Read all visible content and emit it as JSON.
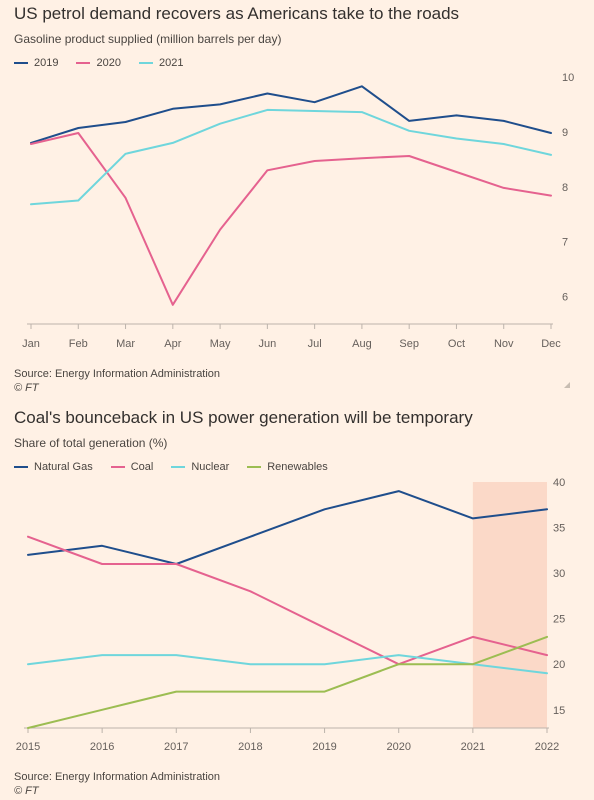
{
  "chart_data": [
    {
      "type": "line",
      "title": "US petrol demand recovers as Americans take to the roads",
      "subtitle": "Gasoline product supplied (million barrels per day)",
      "categories": [
        "Jan",
        "Feb",
        "Mar",
        "Apr",
        "May",
        "Jun",
        "Jul",
        "Aug",
        "Sep",
        "Oct",
        "Nov",
        "Dec"
      ],
      "series": [
        {
          "name": "2019",
          "color": "#1f4e8c",
          "values": [
            8.8,
            9.07,
            9.18,
            9.42,
            9.5,
            9.7,
            9.54,
            9.83,
            9.2,
            9.3,
            9.2,
            8.98
          ]
        },
        {
          "name": "2020",
          "color": "#e5628f",
          "values": [
            8.78,
            8.98,
            7.8,
            5.85,
            7.22,
            8.3,
            8.47,
            8.52,
            8.56,
            8.27,
            7.98,
            7.84
          ]
        },
        {
          "name": "2021",
          "color": "#6fd6dc",
          "values": [
            7.68,
            7.75,
            8.6,
            8.8,
            9.15,
            9.4,
            9.38,
            9.36,
            9.02,
            8.88,
            8.78,
            8.58
          ]
        }
      ],
      "yticks": [
        6,
        7,
        8,
        9,
        10
      ],
      "ylim": [
        5.5,
        10
      ],
      "legend_position": "top-left",
      "grid": false,
      "source": "Source: Energy Information Administration",
      "copyright": "© FT"
    },
    {
      "type": "line",
      "title": "Coal's bounceback in US power generation will be temporary",
      "subtitle": "Share of total generation (%)",
      "categories": [
        "2015",
        "2016",
        "2017",
        "2018",
        "2019",
        "2020",
        "2021",
        "2022"
      ],
      "series": [
        {
          "name": "Natural Gas",
          "color": "#1f4e8c",
          "values": [
            32,
            33,
            31,
            34,
            37,
            39,
            36,
            37
          ]
        },
        {
          "name": "Coal",
          "color": "#e5628f",
          "values": [
            34,
            31,
            31,
            28,
            24,
            20,
            23,
            21
          ]
        },
        {
          "name": "Nuclear",
          "color": "#6fd6dc",
          "values": [
            20,
            21,
            21,
            20,
            20,
            21,
            20,
            19
          ]
        },
        {
          "name": "Renewables",
          "color": "#9cbd52",
          "values": [
            13,
            15,
            17,
            17,
            17,
            20,
            20,
            23
          ]
        }
      ],
      "yticks": [
        15,
        20,
        25,
        30,
        35,
        40
      ],
      "ylim": [
        13,
        40
      ],
      "shaded_range": [
        "2021",
        "2022"
      ],
      "shade_color": "#fbd9c8",
      "legend_position": "top-left",
      "grid": false,
      "source": "Source: Energy Information Administration",
      "copyright": "© FT"
    }
  ]
}
